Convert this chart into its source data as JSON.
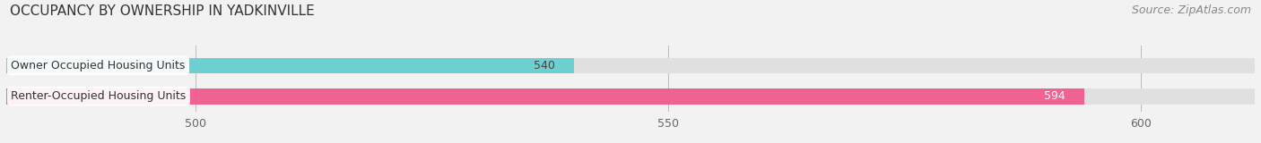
{
  "title": "OCCUPANCY BY OWNERSHIP IN YADKINVILLE",
  "source": "Source: ZipAtlas.com",
  "categories": [
    "Owner Occupied Housing Units",
    "Renter-Occupied Housing Units"
  ],
  "values": [
    540,
    594
  ],
  "bar_colors": [
    "#6dcfcf",
    "#f06292"
  ],
  "value_colors": [
    "#444444",
    "#ffffff"
  ],
  "xlim_min": 480,
  "xlim_max": 612,
  "xticks": [
    500,
    550,
    600
  ],
  "title_fontsize": 11,
  "source_fontsize": 9,
  "label_fontsize": 9,
  "value_fontsize": 9,
  "tick_fontsize": 9,
  "bar_height": 0.52,
  "bg_color": "#f2f2f2",
  "bar_bg_color": "#e0e0e0"
}
